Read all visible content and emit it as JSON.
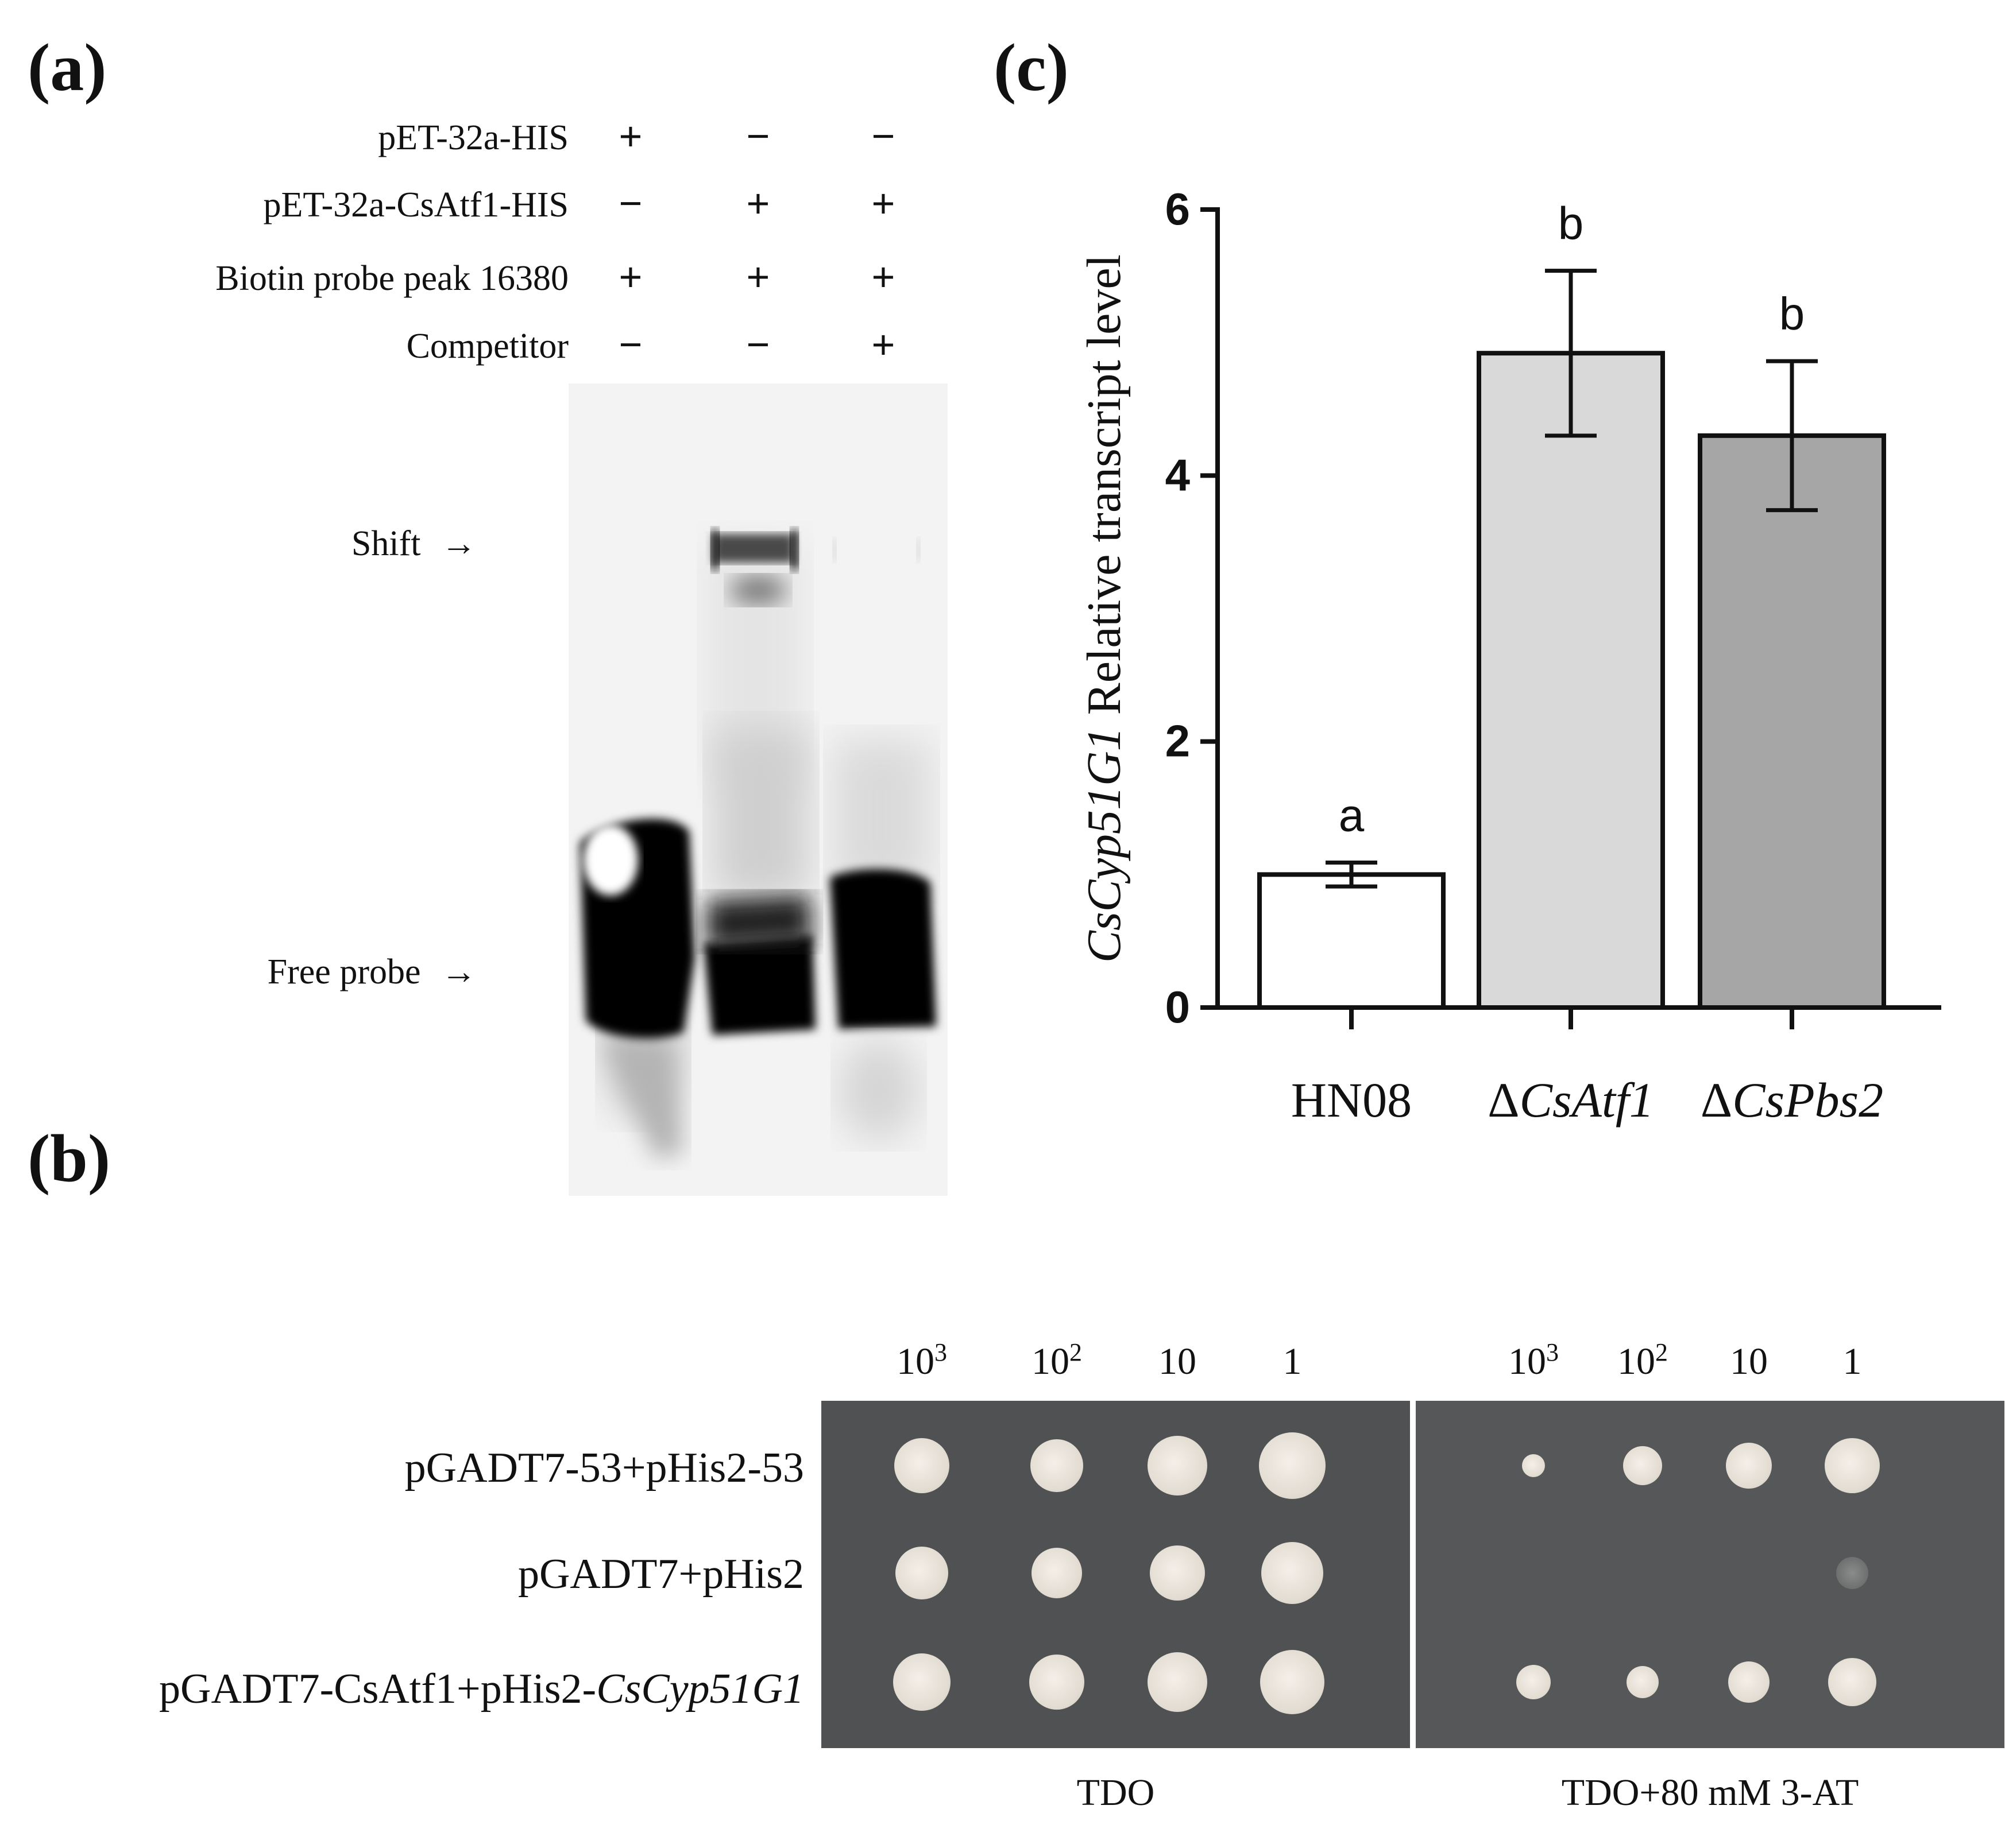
{
  "panels": {
    "a": "(a)",
    "b": "(b)",
    "c": "(c)"
  },
  "emsa": {
    "rows": [
      {
        "label": "pET-32a-HIS",
        "signs": [
          "+",
          "−",
          "−"
        ]
      },
      {
        "label": "pET-32a-CsAtf1-HIS",
        "signs": [
          "−",
          "+",
          "+"
        ]
      },
      {
        "label": "Biotin probe peak 16380",
        "signs": [
          "+",
          "+",
          "+"
        ]
      },
      {
        "label": "Competitor",
        "signs": [
          "−",
          "−",
          "+"
        ]
      }
    ],
    "shift_label": "Shift",
    "free_probe_label": "Free probe",
    "arrow": "→"
  },
  "y1h": {
    "dilutions_tdo": [
      {
        "base": "10",
        "exp": "3"
      },
      {
        "base": "10",
        "exp": "2"
      },
      {
        "base": "10",
        "exp": ""
      },
      {
        "base": "1",
        "exp": ""
      }
    ],
    "dilutions_3at": [
      {
        "base": "10",
        "exp": "3"
      },
      {
        "base": "10",
        "exp": "2"
      },
      {
        "base": "10",
        "exp": ""
      },
      {
        "base": "1",
        "exp": ""
      }
    ],
    "rows": [
      {
        "plain": "pGADT7-53+pHis2-53",
        "italic": ""
      },
      {
        "plain": "pGADT7+pHis2",
        "italic": ""
      },
      {
        "plain": "pGADT7-CsAtf1+pHis2-",
        "italic": "CsCyp51G1"
      }
    ],
    "condition_left": "TDO",
    "condition_right": "TDO+80 mM 3-AT"
  },
  "chart_data": {
    "type": "bar",
    "categories": [
      "HN08",
      "ΔCsAtf1",
      "ΔCsPbs2"
    ],
    "category_prefix": [
      "",
      "Δ",
      "Δ"
    ],
    "category_italic": [
      "",
      "CsAtf1",
      "CsPbs2"
    ],
    "values": [
      1.0,
      4.92,
      4.3
    ],
    "errors": [
      0.09,
      0.62,
      0.56
    ],
    "significance": [
      "a",
      "b",
      "b"
    ],
    "bar_colors": [
      "#ffffff",
      "#d9d9d9",
      "#a6a6a7"
    ],
    "ylabel_italic": "CsCyp51G1",
    "ylabel_rest": " Relative transcript level",
    "ylim": [
      0,
      6
    ],
    "yticks": [
      "0",
      "2",
      "4",
      "6"
    ],
    "title": "",
    "xlabel": ""
  }
}
